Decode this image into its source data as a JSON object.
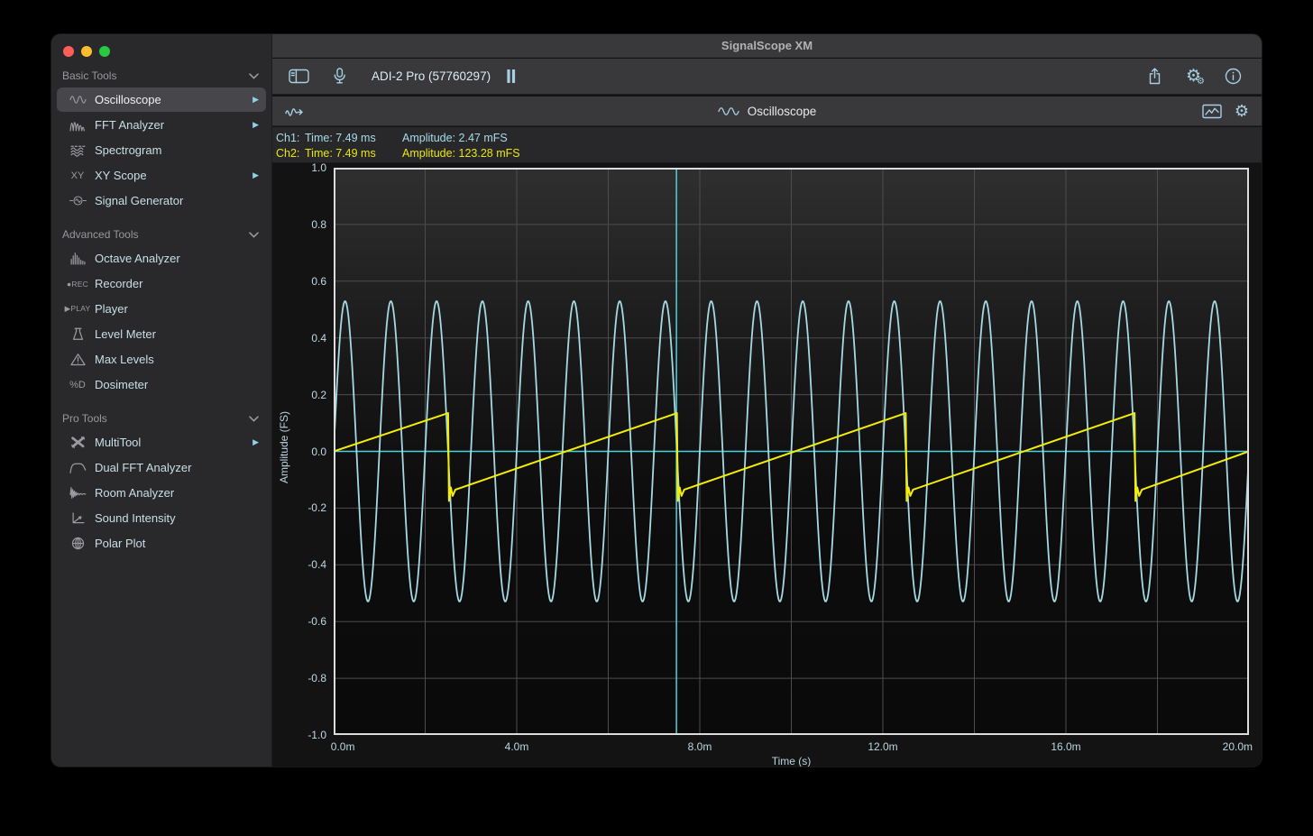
{
  "window": {
    "title": "SignalScope XM"
  },
  "toolbar": {
    "device_label": "ADI-2 Pro (57760297)",
    "icons": [
      "sidebar-toggle-icon",
      "microphone-icon",
      "pause-icon",
      "share-icon",
      "settings-gears-icon",
      "info-icon"
    ]
  },
  "scope": {
    "title": "Oscilloscope",
    "header_icons": [
      "signal-input-icon",
      "chart-box-icon",
      "gear-icon"
    ],
    "readouts": [
      {
        "channel": "Ch1:",
        "time": "Time: 7.49 ms",
        "amplitude": "Amplitude: 2.47 mFS",
        "color": "#a8dce8"
      },
      {
        "channel": "Ch2:",
        "time": "Time: 7.49 ms",
        "amplitude": "Amplitude: 123.28 mFS",
        "color": "#ece70f"
      }
    ]
  },
  "sidebar": {
    "sections": [
      {
        "label": "Basic Tools",
        "items": [
          {
            "label": "Oscilloscope",
            "icon": "sine-wave-icon",
            "selected": true,
            "disclosure": true
          },
          {
            "label": "FFT Analyzer",
            "icon": "fft-peaks-icon",
            "disclosure": true
          },
          {
            "label": "Spectrogram",
            "icon": "spectrogram-icon"
          },
          {
            "label": "XY Scope",
            "icon": "xy-icon",
            "disclosure": true
          },
          {
            "label": "Signal Generator",
            "icon": "signal-generator-icon"
          }
        ]
      },
      {
        "label": "Advanced Tools",
        "items": [
          {
            "label": "Octave Analyzer",
            "icon": "octave-bars-icon"
          },
          {
            "label": "Recorder",
            "icon": "rec-icon"
          },
          {
            "label": "Player",
            "icon": "play-icon"
          },
          {
            "label": "Level Meter",
            "icon": "level-meter-icon"
          },
          {
            "label": "Max Levels",
            "icon": "warning-triangle-icon"
          },
          {
            "label": "Dosimeter",
            "icon": "dosimeter-icon"
          }
        ]
      },
      {
        "label": "Pro Tools",
        "items": [
          {
            "label": "MultiTool",
            "icon": "multitool-icon",
            "disclosure": true
          },
          {
            "label": "Dual FFT Analyzer",
            "icon": "dual-fft-icon"
          },
          {
            "label": "Room Analyzer",
            "icon": "room-analyzer-icon"
          },
          {
            "label": "Sound Intensity",
            "icon": "sound-intensity-icon"
          },
          {
            "label": "Polar Plot",
            "icon": "polar-plot-icon"
          }
        ]
      }
    ]
  },
  "chart_data": {
    "type": "line",
    "title": "Oscilloscope",
    "xlabel": "Time (s)",
    "ylabel": "Amplitude (FS)",
    "xlim_ms": [
      0,
      20
    ],
    "ylim": [
      -1.0,
      1.0
    ],
    "grid": {
      "x_step_ms": 2,
      "y_step": 0.2,
      "color": "#4d4d4d",
      "border_color": "#dcdcdc"
    },
    "x_ticks": [
      {
        "ms": 0,
        "label": "0.0m"
      },
      {
        "ms": 4,
        "label": "4.0m"
      },
      {
        "ms": 8,
        "label": "8.0m"
      },
      {
        "ms": 12,
        "label": "12.0m"
      },
      {
        "ms": 16,
        "label": "16.0m"
      },
      {
        "ms": 20,
        "label": "20.0m"
      }
    ],
    "y_ticks": [
      {
        "value": 1.0,
        "label": "1.0"
      },
      {
        "value": 0.8,
        "label": "0.8"
      },
      {
        "value": 0.6,
        "label": "0.6"
      },
      {
        "value": 0.4,
        "label": "0.4"
      },
      {
        "value": 0.2,
        "label": "0.2"
      },
      {
        "value": 0.0,
        "label": "0.0"
      },
      {
        "value": -0.2,
        "label": "-0.2"
      },
      {
        "value": -0.4,
        "label": "-0.4"
      },
      {
        "value": -0.6,
        "label": "-0.6"
      },
      {
        "value": -0.8,
        "label": "-0.8"
      },
      {
        "value": -1.0,
        "label": "-1.0"
      }
    ],
    "series": [
      {
        "name": "Ch1",
        "waveform": "sine",
        "freq_hz": 1000,
        "amplitude_fs": 0.53,
        "phase_deg": 0,
        "color": "#a5d9e3"
      },
      {
        "name": "Ch2",
        "waveform": "sawtooth",
        "freq_hz": 200,
        "amplitude_fs": 0.135,
        "first_drop_ms": 2.5,
        "undershoot_fs": 0.04,
        "end_value_fs": 0,
        "color": "#f4ee05"
      }
    ],
    "cursor": {
      "time_ms": 7.49,
      "amplitude_fs": 0.0,
      "color": "#4fd2e0"
    },
    "background_gradient": [
      "#2f2f2f",
      "#191919",
      "#0d0d0d",
      "#0a0a0a"
    ]
  }
}
